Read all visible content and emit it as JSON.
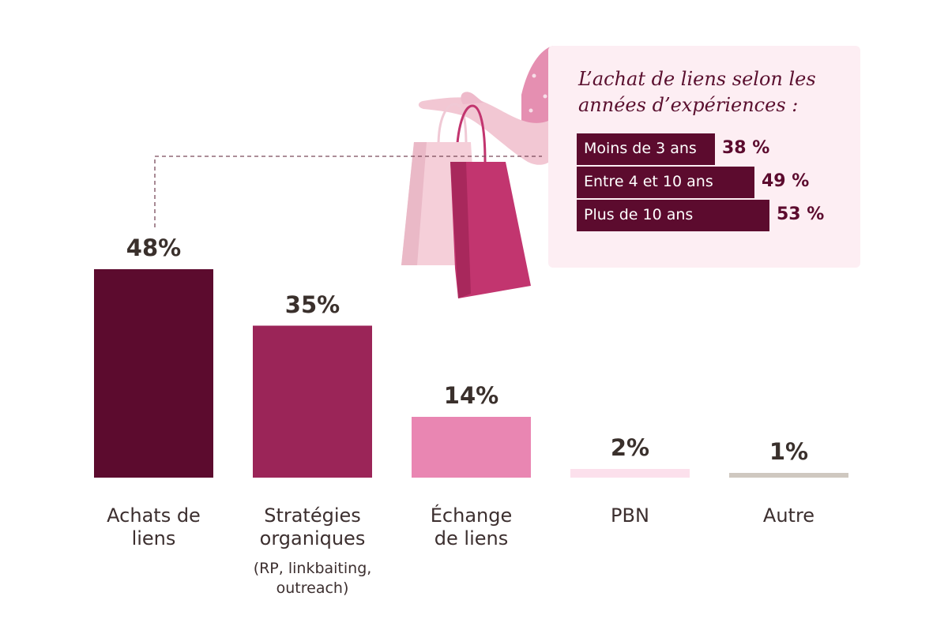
{
  "chart_data": [
    {
      "type": "bar",
      "categories": [
        "Achats de\nliens",
        "Stratégies\norganiques",
        "Échange\nde liens",
        "PBN",
        "Autre"
      ],
      "category_notes": [
        "",
        "(RP, linkbaiting,\noutreach)",
        "",
        "",
        ""
      ],
      "values": [
        48,
        35,
        14,
        2,
        1
      ],
      "value_labels": [
        "48%",
        "35%",
        "14%",
        "2%",
        "1%"
      ],
      "bar_colors": [
        "#5c0b2e",
        "#9b2558",
        "#e986b2",
        "#fce0ec",
        "#cfc8c0"
      ],
      "ylim": [
        0,
        48
      ],
      "title": "",
      "xlabel": "",
      "ylabel": "",
      "grid": false
    },
    {
      "type": "bar",
      "orientation": "horizontal",
      "title": "L’achat de liens selon les\nannées d’expériences :",
      "categories": [
        "Moins de 3 ans",
        "Entre 4 et 10 ans",
        "Plus de 10 ans"
      ],
      "values": [
        38,
        49,
        53
      ],
      "value_labels": [
        "38 %",
        "49 %",
        "53 %"
      ],
      "bar_color": "#5c0b2e",
      "panel_color": "#fdeef3"
    }
  ],
  "colors": {
    "text": "#3c2f2f",
    "accent_dark": "#5c0b2e",
    "connector": "#7a4a5a"
  }
}
